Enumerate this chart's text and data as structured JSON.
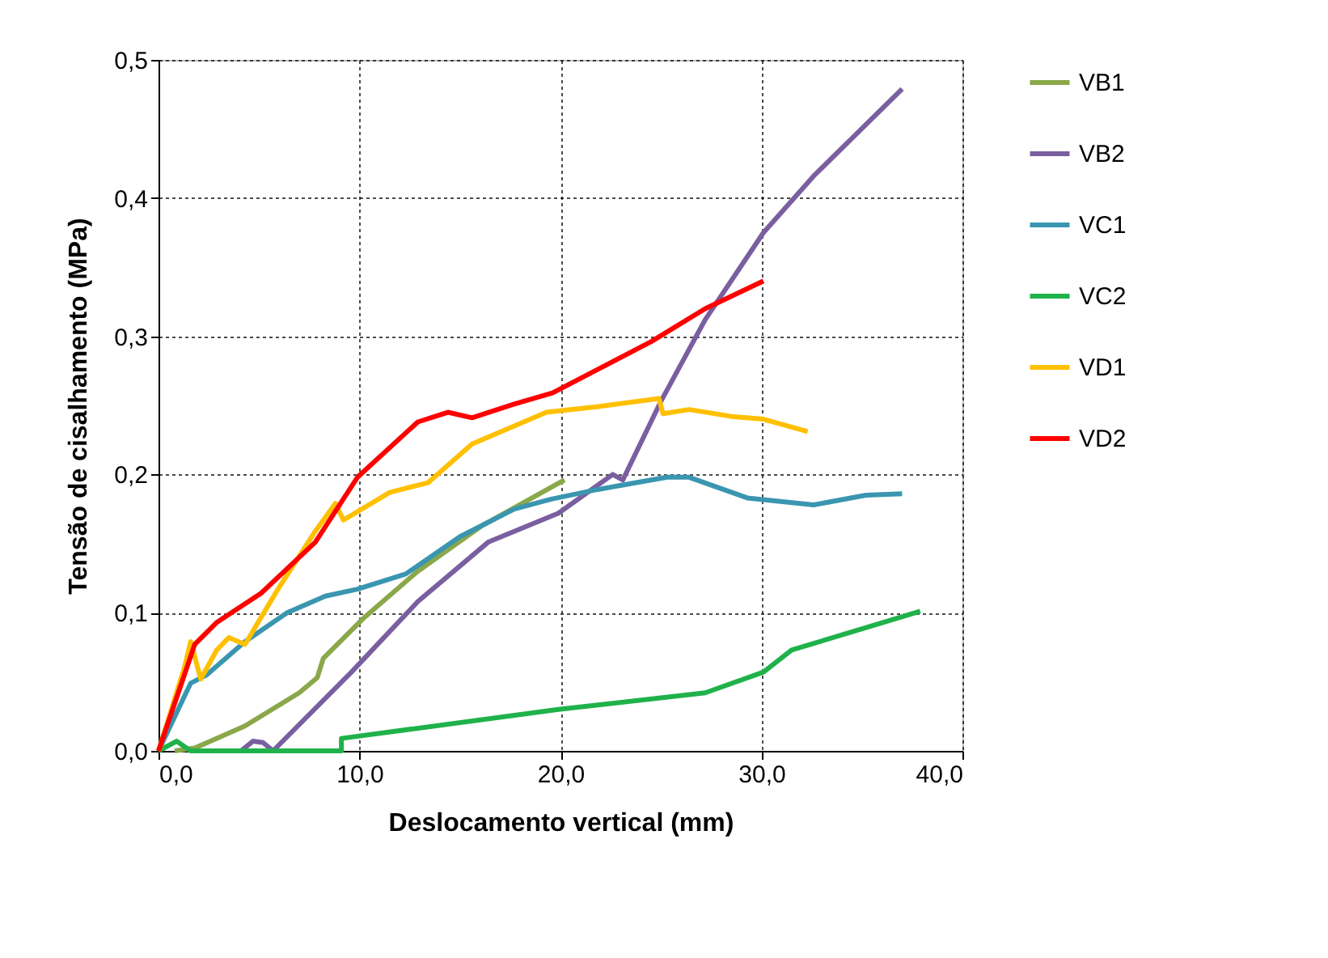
{
  "chart_data": {
    "type": "line",
    "xlabel": "Deslocamento vertical (mm)",
    "ylabel": "Tensão de cisalhamento (MPa)",
    "xlim": [
      0,
      40
    ],
    "ylim": [
      0,
      0.5
    ],
    "xticks": [
      {
        "value": 0,
        "label": "0,0"
      },
      {
        "value": 10,
        "label": "10,0"
      },
      {
        "value": 20,
        "label": "20,0"
      },
      {
        "value": 30,
        "label": "30,0"
      },
      {
        "value": 40,
        "label": "40,0"
      }
    ],
    "yticks": [
      {
        "value": 0,
        "label": "0,0"
      },
      {
        "value": 0.1,
        "label": "0,1"
      },
      {
        "value": 0.2,
        "label": "0,2"
      },
      {
        "value": 0.3,
        "label": "0,3"
      },
      {
        "value": 0.4,
        "label": "0,4"
      },
      {
        "value": 0.5,
        "label": "0,5"
      }
    ],
    "grid": true,
    "legend": "right",
    "marker": "none",
    "line_style": "solid",
    "series": [
      {
        "name": "VB1",
        "color": "#8aa84a",
        "x": [
          0.8,
          1.8,
          4.3,
          7.0,
          7.9,
          8.2,
          10.2,
          12.9,
          16.1,
          20.2
        ],
        "values": [
          0,
          0.002,
          0.018,
          0.042,
          0.053,
          0.067,
          0.096,
          0.13,
          0.163,
          0.196
        ]
      },
      {
        "name": "VB2",
        "color": "#7a5fa0",
        "x": [
          4.1,
          4.7,
          5.2,
          5.7,
          9.6,
          12.9,
          16.4,
          19.9,
          22.6,
          23.1,
          25.0,
          27.2,
          30.1,
          32.6,
          37.0
        ],
        "values": [
          0,
          0.007,
          0.006,
          0,
          0.057,
          0.108,
          0.151,
          0.172,
          0.2,
          0.196,
          0.253,
          0.312,
          0.375,
          0.416,
          0.479
        ]
      },
      {
        "name": "VC1",
        "color": "#3a96b0",
        "x": [
          0,
          1.6,
          2.4,
          4.3,
          6.4,
          8.3,
          9.9,
          12.3,
          15.0,
          17.7,
          19.5,
          21.8,
          25.3,
          26.4,
          29.3,
          32.6,
          35.2,
          37.0
        ],
        "values": [
          0,
          0.049,
          0.055,
          0.079,
          0.1,
          0.112,
          0.117,
          0.128,
          0.155,
          0.175,
          0.182,
          0.189,
          0.198,
          0.198,
          0.183,
          0.178,
          0.185,
          0.186
        ]
      },
      {
        "name": "VC2",
        "color": "#1fb24a",
        "x": [
          0,
          0.9,
          1.6,
          9.1,
          9.1,
          19.9,
          27.2,
          30.1,
          31.5,
          37.9
        ],
        "values": [
          0,
          0.007,
          0,
          0,
          0.009,
          0.03,
          0.042,
          0.057,
          0.073,
          0.101
        ]
      },
      {
        "name": "VD1",
        "color": "#ffc000",
        "x": [
          0,
          1.3,
          1.6,
          2.1,
          2.9,
          3.5,
          4.3,
          5.9,
          7.8,
          8.8,
          9.2,
          11.5,
          13.4,
          15.6,
          19.3,
          21.8,
          24.9,
          25.1,
          26.4,
          28.5,
          30.1,
          32.3
        ],
        "values": [
          0,
          0.061,
          0.079,
          0.052,
          0.073,
          0.082,
          0.077,
          0.116,
          0.159,
          0.179,
          0.167,
          0.187,
          0.194,
          0.222,
          0.245,
          0.249,
          0.255,
          0.244,
          0.247,
          0.242,
          0.24,
          0.231
        ]
      },
      {
        "name": "VD2",
        "color": "#ff0000",
        "x": [
          0,
          1.8,
          2.9,
          5.1,
          7.8,
          9.9,
          12.9,
          14.4,
          15.6,
          17.7,
          19.6,
          24.5,
          27.2,
          30.1
        ],
        "values": [
          0,
          0.077,
          0.093,
          0.114,
          0.151,
          0.198,
          0.238,
          0.245,
          0.241,
          0.251,
          0.259,
          0.296,
          0.32,
          0.34
        ]
      }
    ]
  }
}
